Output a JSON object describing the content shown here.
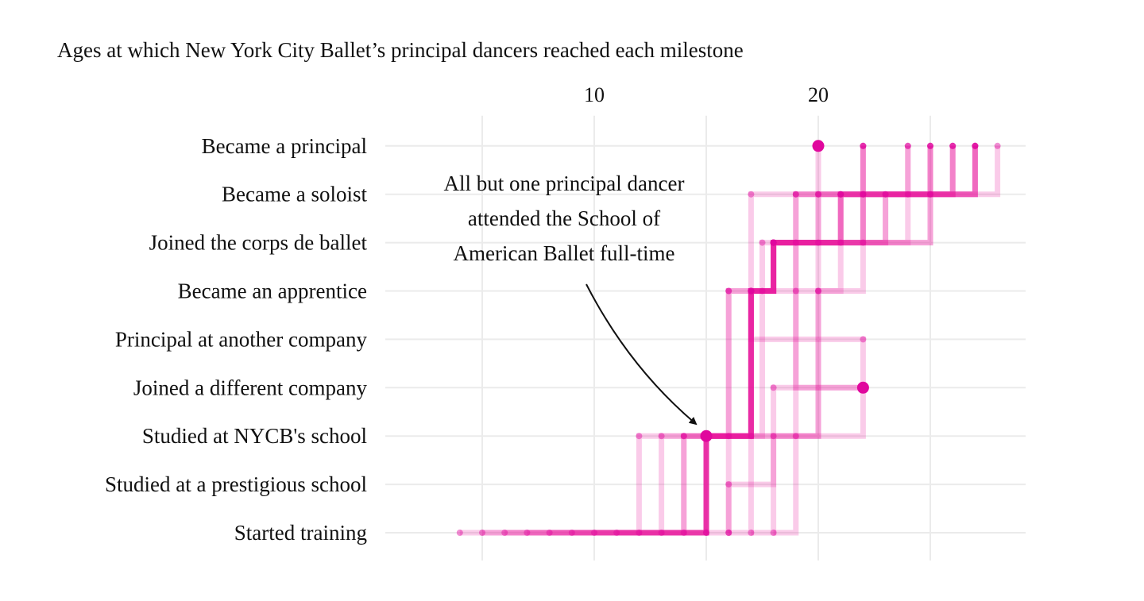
{
  "chart_data": {
    "type": "line",
    "title": "Ages at which New York City Ballet’s principal dancers reached each milestone",
    "xlabel": "",
    "ylabel": "",
    "x_ticks": [
      10,
      20
    ],
    "xlim": [
      3,
      29
    ],
    "grid": true,
    "categories": [
      "Started training",
      "Studied at a prestigious school",
      "Studied at NYCB's school",
      "Joined a different company",
      "Principal at another company",
      "Became an apprentice",
      "Joined the corps de ballet",
      "Became a soloist",
      "Became a principal"
    ],
    "series": [
      {
        "values": [
          4,
          null,
          12,
          null,
          null,
          17,
          18,
          21,
          27
        ]
      },
      {
        "values": [
          5,
          null,
          13,
          null,
          null,
          16,
          19,
          22,
          26
        ]
      },
      {
        "values": [
          6,
          null,
          14,
          null,
          null,
          17,
          18,
          24,
          25
        ]
      },
      {
        "values": [
          7,
          null,
          15,
          null,
          null,
          16,
          17.5,
          22,
          25
        ]
      },
      {
        "values": [
          8,
          null,
          14,
          null,
          null,
          17.5,
          18,
          23,
          27
        ]
      },
      {
        "values": [
          9,
          null,
          15,
          null,
          null,
          17,
          18,
          25,
          26
        ]
      },
      {
        "values": [
          10,
          null,
          15,
          null,
          null,
          17,
          18,
          20,
          22
        ]
      },
      {
        "values": [
          11,
          null,
          15,
          null,
          null,
          17,
          18,
          20,
          24
        ]
      },
      {
        "values": [
          12,
          null,
          15,
          null,
          null,
          17,
          18,
          21,
          22
        ]
      },
      {
        "values": [
          13,
          null,
          15,
          null,
          null,
          17,
          18,
          21,
          25
        ]
      },
      {
        "values": [
          14,
          null,
          15,
          null,
          null,
          17,
          18,
          22,
          27
        ]
      },
      {
        "values": [
          15,
          null,
          15,
          null,
          null,
          17,
          18,
          19,
          28
        ]
      },
      {
        "values": [
          15,
          16,
          null,
          18,
          22,
          null,
          null,
          17,
          27
        ]
      },
      {
        "values": [
          16,
          null,
          16,
          22,
          null,
          null,
          null,
          19,
          20
        ]
      },
      {
        "values": [
          16,
          null,
          17,
          null,
          null,
          20,
          21,
          23,
          24
        ]
      },
      {
        "values": [
          17,
          null,
          18,
          null,
          null,
          19,
          20,
          21,
          22
        ]
      },
      {
        "values": [
          18,
          null,
          19,
          null,
          null,
          20,
          22,
          25,
          26
        ]
      }
    ],
    "annotation": {
      "lines": [
        "All but one principal dancer",
        "attended the School of",
        "American Ballet full-time"
      ]
    },
    "highlight_points": [
      {
        "x": 15,
        "category": "Studied at NYCB's school"
      },
      {
        "x": 22,
        "category": "Joined a different company"
      },
      {
        "x": 20,
        "category": "Became a principal"
      }
    ],
    "colors": {
      "line": "#e8119c",
      "dot": "#e0079d",
      "grid": "#ebebeb"
    }
  }
}
